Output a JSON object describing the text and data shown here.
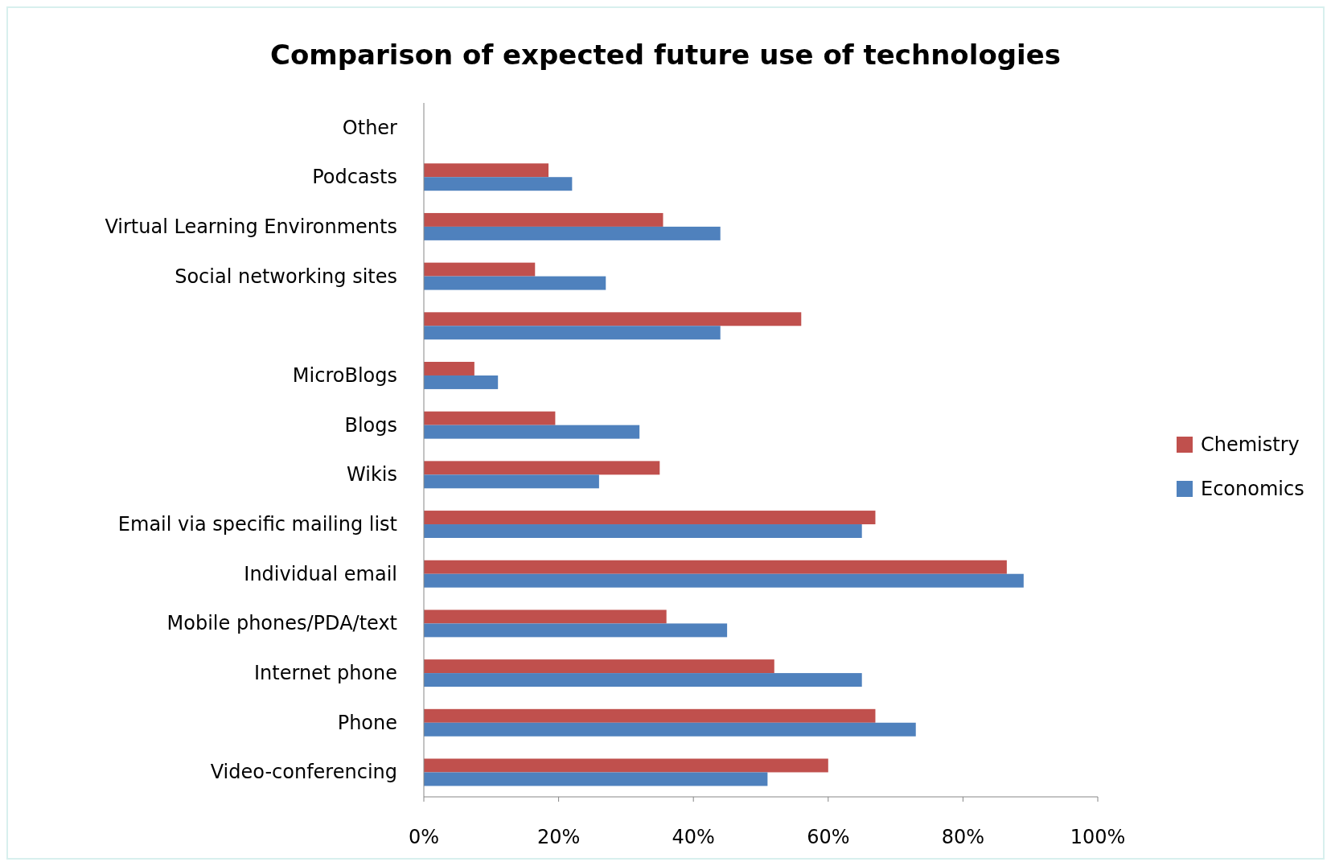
{
  "chart_data": {
    "type": "bar",
    "orientation": "horizontal",
    "title": "Comparison of expected future use of technologies",
    "categories": [
      "Other",
      "Podcasts",
      "Virtual Learning Environments",
      "Social networking sites",
      null,
      "MicroBlogs",
      "Blogs",
      "Wikis",
      "Email via specific mailing list",
      "Individual email",
      "Mobile phones/PDA/text",
      "Internet phone",
      "Phone",
      "Video-conferencing"
    ],
    "series": [
      {
        "name": "Chemistry",
        "color": "#c0504d",
        "values": [
          null,
          18.5,
          35.5,
          16.5,
          56,
          7.5,
          19.5,
          35,
          67,
          86.5,
          36,
          52,
          67,
          60
        ]
      },
      {
        "name": "Economics",
        "color": "#4f81bd",
        "values": [
          null,
          22,
          44,
          27,
          44,
          11,
          32,
          26,
          65,
          89,
          45,
          65,
          73,
          51
        ]
      }
    ],
    "xlim": [
      0,
      100
    ],
    "xticks": [
      {
        "value": 0,
        "label": "0%"
      },
      {
        "value": 20,
        "label": "20%"
      },
      {
        "value": 40,
        "label": "40%"
      },
      {
        "value": 60,
        "label": "60%"
      },
      {
        "value": 80,
        "label": "80%"
      },
      {
        "value": 100,
        "label": "100%"
      }
    ],
    "grid": false,
    "legend": "right"
  }
}
